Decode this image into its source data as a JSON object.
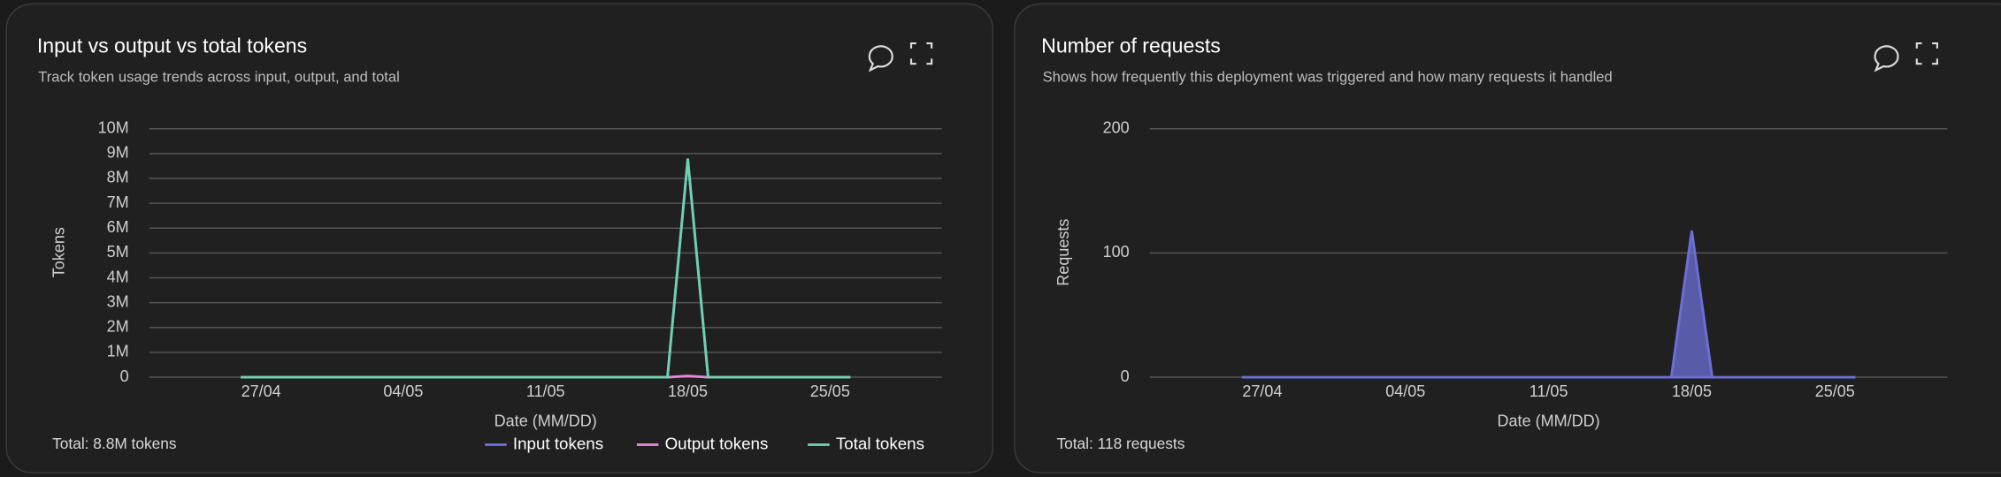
{
  "chart_data": [
    {
      "type": "line",
      "title": "Input vs output vs total tokens",
      "subtitle": "Track token usage trends across input, output, and total",
      "y_label": "Tokens",
      "x_label": "Date (MM/DD)",
      "annotation": "Total: 8.8M tokens",
      "categories": [
        null,
        "27/04",
        null,
        null,
        null,
        null,
        null,
        null,
        "04/05",
        null,
        null,
        null,
        null,
        null,
        null,
        "11/05",
        null,
        null,
        null,
        null,
        null,
        null,
        "18/05",
        null,
        null,
        null,
        null,
        null,
        null,
        "25/05",
        null
      ],
      "series": [
        {
          "name": "Input tokens",
          "color": "#6b74e0",
          "values": [
            0,
            0,
            0,
            0,
            0,
            0,
            0,
            0,
            0,
            0,
            0,
            0,
            0,
            0,
            0,
            0,
            0,
            0,
            0,
            0,
            0,
            0,
            8750000,
            0,
            0,
            0,
            0,
            0,
            0,
            0,
            0
          ]
        },
        {
          "name": "Output tokens",
          "color": "#e58ad6",
          "values": [
            0,
            0,
            0,
            0,
            0,
            0,
            0,
            0,
            0,
            0,
            0,
            0,
            0,
            0,
            0,
            0,
            0,
            0,
            0,
            0,
            0,
            0,
            50000,
            0,
            0,
            0,
            0,
            0,
            0,
            0,
            0
          ]
        },
        {
          "name": "Total tokens",
          "color": "#6fd1b0",
          "values": [
            0,
            0,
            0,
            0,
            0,
            0,
            0,
            0,
            0,
            0,
            0,
            0,
            0,
            0,
            0,
            0,
            0,
            0,
            0,
            0,
            0,
            0,
            8800000,
            0,
            0,
            0,
            0,
            0,
            0,
            0,
            0
          ]
        }
      ],
      "ylim": [
        0,
        10000000
      ],
      "yticks": [
        0,
        {
          "value": 1000000,
          "label": "1M"
        },
        {
          "value": 2000000,
          "label": "2M"
        },
        {
          "value": 3000000,
          "label": "3M"
        },
        {
          "value": 4000000,
          "label": "4M"
        },
        {
          "value": 5000000,
          "label": "5M"
        },
        {
          "value": 6000000,
          "label": "6M"
        },
        {
          "value": 7000000,
          "label": "7M"
        },
        {
          "value": 8000000,
          "label": "8M"
        },
        {
          "value": 9000000,
          "label": "9M"
        },
        {
          "value": 10000000,
          "label": "10M"
        }
      ],
      "grid": true,
      "legend": "bottom-right"
    },
    {
      "type": "area",
      "title": "Number of requests",
      "subtitle": "Shows how frequently this deployment was triggered and how many requests it handled",
      "y_label": "Requests",
      "x_label": "Date (MM/DD)",
      "annotation": "Total: 118 requests",
      "categories": [
        null,
        "27/04",
        null,
        null,
        null,
        null,
        null,
        null,
        "04/05",
        null,
        null,
        null,
        null,
        null,
        null,
        "11/05",
        null,
        null,
        null,
        null,
        null,
        null,
        "18/05",
        null,
        null,
        null,
        null,
        null,
        null,
        "25/05",
        null
      ],
      "series": [
        {
          "name": "Requests",
          "color": "#6b6fd6",
          "values": [
            0,
            0,
            0,
            0,
            0,
            0,
            0,
            0,
            0,
            0,
            0,
            0,
            0,
            0,
            0,
            0,
            0,
            0,
            0,
            0,
            0,
            0,
            118,
            0,
            0,
            0,
            0,
            0,
            0,
            0,
            0
          ]
        }
      ],
      "ylim": [
        0,
        200
      ],
      "yticks": [
        0,
        100,
        200
      ],
      "grid": true
    }
  ]
}
